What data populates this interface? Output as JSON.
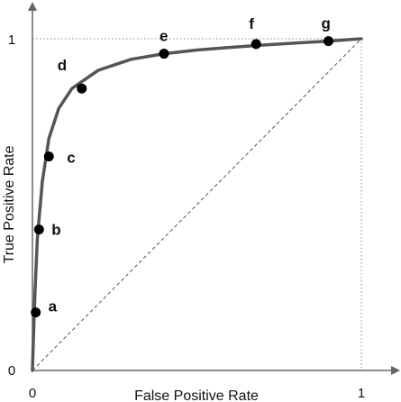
{
  "chart_data": {
    "type": "line",
    "xlabel": "False Positive Rate",
    "ylabel": "True Positive Rate",
    "xlim": [
      0,
      1
    ],
    "ylim": [
      0,
      1
    ],
    "x_ticks": [
      "0",
      "1"
    ],
    "y_ticks": [
      "0",
      "1"
    ],
    "grid": false,
    "curve": {
      "x": [
        0,
        0.003,
        0.008,
        0.015,
        0.03,
        0.05,
        0.08,
        0.12,
        0.2,
        0.3,
        0.4,
        0.5,
        0.6,
        0.7,
        0.8,
        0.9,
        1.0
      ],
      "y": [
        0,
        0.1,
        0.24,
        0.4,
        0.57,
        0.7,
        0.79,
        0.85,
        0.905,
        0.938,
        0.955,
        0.966,
        0.974,
        0.981,
        0.987,
        0.993,
        1.0
      ]
    },
    "diagonal": {
      "x": [
        0,
        1
      ],
      "y": [
        0,
        1
      ]
    },
    "points": [
      {
        "label": "a",
        "x": 0.01,
        "y": 0.175
      },
      {
        "label": "b",
        "x": 0.02,
        "y": 0.425
      },
      {
        "label": "c",
        "x": 0.05,
        "y": 0.645
      },
      {
        "label": "d",
        "x": 0.15,
        "y": 0.85
      },
      {
        "label": "e",
        "x": 0.4,
        "y": 0.955
      },
      {
        "label": "f",
        "x": 0.68,
        "y": 0.984
      },
      {
        "label": "g",
        "x": 0.9,
        "y": 0.993
      }
    ],
    "colors": {
      "curve": "#555555",
      "point": "#000000",
      "axis": "#666666",
      "diagonal": "#555555",
      "guide": "#888888"
    }
  }
}
